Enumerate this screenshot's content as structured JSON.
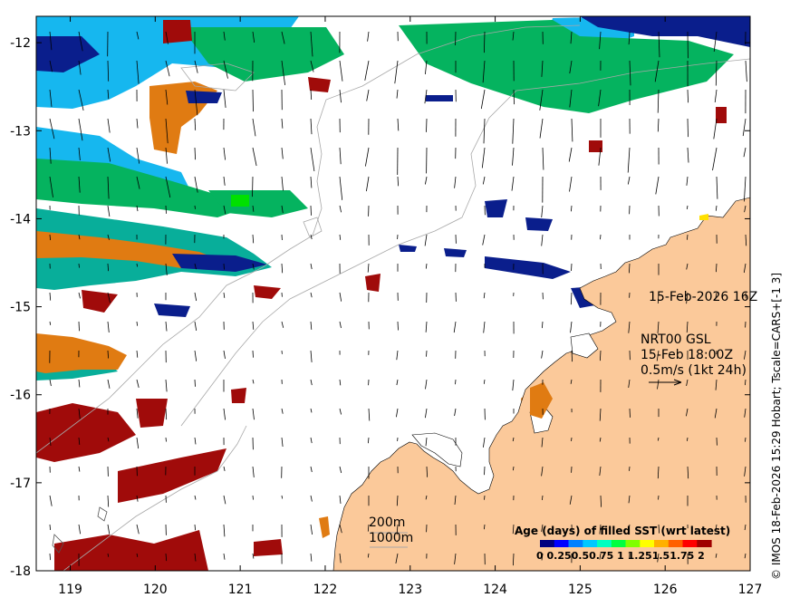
{
  "map": {
    "x_ticks": [
      "119",
      "120",
      "121",
      "122",
      "123",
      "124",
      "125",
      "126",
      "127"
    ],
    "y_ticks": [
      "-12",
      "-13",
      "-14",
      "-15",
      "-16",
      "-17",
      "-18"
    ],
    "lon_range": [
      118.6,
      127
    ],
    "lat_range": [
      -18,
      -11.7
    ]
  },
  "annotations": {
    "date_label": "15-Feb-2026 16Z",
    "product_line1": "NRT00 GSL",
    "product_line2": "15-Feb 18:00Z",
    "product_line3": "0.5m/s (1kt 24h)",
    "isobath_200": "200m",
    "isobath_1000": "1000m"
  },
  "colorbar": {
    "title": "Age (days) of filled SST (wrt latest)",
    "tick_labels": "0  0.250.50.75   1  1.251.51.75   2",
    "colors": [
      "#000080",
      "#0000ff",
      "#0080ff",
      "#00c8ff",
      "#00ffc0",
      "#00ff40",
      "#80ff00",
      "#ffff00",
      "#ffb000",
      "#ff6000",
      "#ff0000",
      "#a00000"
    ]
  },
  "credit": "© IMOS 18-Feb-2026 15:29 Hobart; Tscale=CARS+[-1 3]",
  "colors": {
    "land": "#fbc99a",
    "sky_blue": "#16b7ef",
    "green": "#05b35f",
    "teal": "#08ae9a",
    "orange": "#e07b12",
    "dark_red": "#a00b0a",
    "navy": "#0a1e8c"
  }
}
